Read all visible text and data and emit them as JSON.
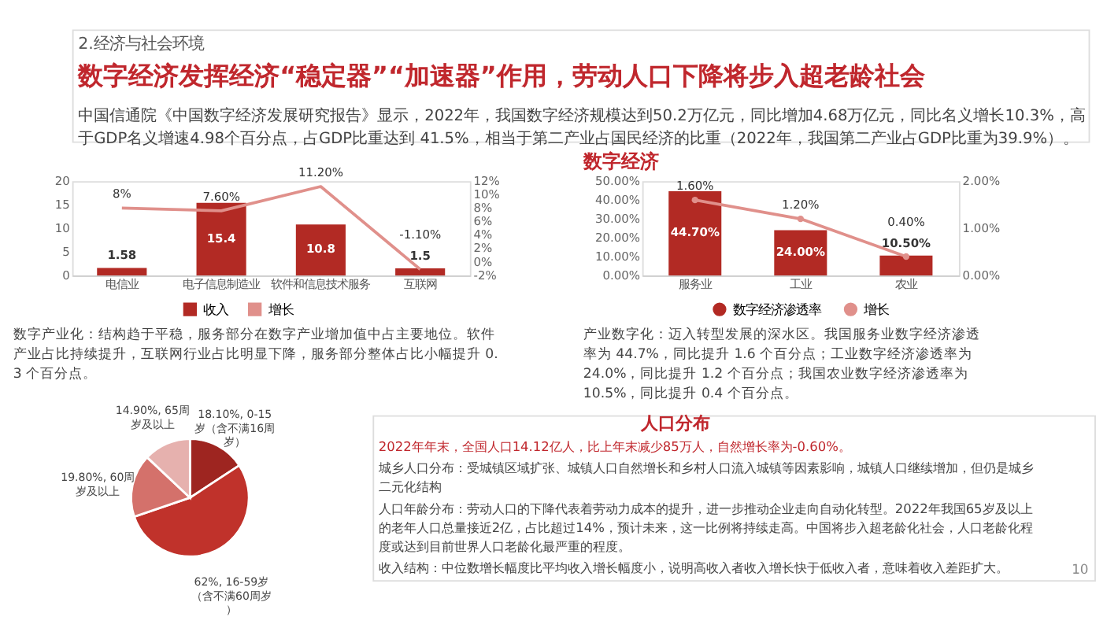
{
  "chart_data": [
    {
      "type": "other",
      "subtitle": "2.经济与社会环境",
      "title": "数字经济发挥经济“稳定器”“加速器”作用，劳动人口下降将步入超老龄社会",
      "annotations": [
        "中国信通院《中国数字经济发展研究报告》显示，2022年，我国数字经济规模达到50.2万亿元，同比增加4.68万亿元，同比名义增长10.3%，高于GDP名义增速4.98个百分点，占GDP比重达到 41.5%，相当于第二产业占国民经济的比重（2022年，我国第二产业占GDP比重为39.9%）。"
      ]
    },
    {
      "type": "bar",
      "categories": [
        "电信业",
        "电子信息制造业",
        "软件和信息技术服务",
        "互联网"
      ],
      "series": [
        {
          "name": "收入",
          "color": "#b22a24",
          "values": [
            1.58,
            15.4,
            10.8,
            1.5
          ],
          "value_labels": [
            "1.58",
            "15.4",
            "10.8",
            "1.5"
          ]
        },
        {
          "name": "增长",
          "type": "line",
          "axis": "y2",
          "color": "#e0908b",
          "values": [
            8,
            7.6,
            11.2,
            -1.1
          ],
          "value_labels": [
            "8%",
            "7.60%",
            "11.20%",
            "-1.10%"
          ]
        }
      ],
      "ylim": [
        0,
        20
      ],
      "yticks": [
        0,
        5,
        10,
        15,
        20
      ],
      "y2lim": [
        -2,
        12
      ],
      "y2ticks": [
        {
          "value": -2,
          "label": "-2%"
        },
        {
          "value": 0,
          "label": "0%"
        },
        {
          "value": 2,
          "label": "2%"
        },
        {
          "value": 4,
          "label": "4%"
        },
        {
          "value": 6,
          "label": "6%"
        },
        {
          "value": 8,
          "label": "8%"
        },
        {
          "value": 10,
          "label": "10%"
        },
        {
          "value": 12,
          "label": "12%"
        }
      ],
      "legend": "bottom",
      "marker": "none",
      "annotations": [
        "数字产业化：结构趋于平稳，服务部分在数字产业增加值中占主要地位。软件产业占比持续提升，互联网行业占比明显下降，服务部分整体占比小幅提升 0.3 个百分点。"
      ]
    },
    {
      "type": "bar",
      "title": "数字经济",
      "categories": [
        "服务业",
        "工业",
        "农业"
      ],
      "series": [
        {
          "name": "数字经济渗透率",
          "color": "#b22a24",
          "values": [
            44.7,
            24.0,
            10.5
          ],
          "value_labels": [
            "44.70%",
            "24.00%",
            "10.50%"
          ]
        },
        {
          "name": "增长",
          "type": "line",
          "axis": "y2",
          "color": "#e0908b",
          "values": [
            1.6,
            1.2,
            0.4
          ],
          "value_labels": [
            "1.60%",
            "1.20%",
            "0.40%"
          ]
        }
      ],
      "ylim": [
        0,
        50
      ],
      "yticks": [
        {
          "value": 0,
          "label": "0.00%"
        },
        {
          "value": 10,
          "label": "10.00%"
        },
        {
          "value": 20,
          "label": "20.00%"
        },
        {
          "value": 30,
          "label": "30.00%"
        },
        {
          "value": 40,
          "label": "40.00%"
        },
        {
          "value": 50,
          "label": "50.00%"
        }
      ],
      "y2lim": [
        0,
        2
      ],
      "y2ticks": [
        {
          "value": 0,
          "label": "0.00%"
        },
        {
          "value": 1,
          "label": "1.00%"
        },
        {
          "value": 2,
          "label": "2.00%"
        }
      ],
      "legend": "bottom",
      "marker": "circle",
      "annotations": [
        "产业数字化：迈入转型发展的深水区。我国服务业数字经济渗透率为 44.7%，同比提升 1.6 个百分点；工业数字经济渗透率为 24.0%，同比提升 1.2 个百分点；我国农业数字经济渗透率为 10.5%，同比提升 0.4 个百分点。"
      ]
    },
    {
      "type": "pie",
      "categories": [
        "0-15岁（含不满16周岁）",
        "16-59岁（含不满60周岁）",
        "60周岁及以上",
        "65周岁及以上"
      ],
      "values": [
        18.1,
        62,
        19.8,
        14.9
      ],
      "value_labels": [
        "18.10%",
        "62%",
        "19.80%",
        "14.90%"
      ],
      "colors": [
        "#9e2520",
        "#c0322b",
        "#d4716b",
        "#e6b1ae"
      ]
    },
    {
      "type": "other",
      "title": "人口分布",
      "annotations": [
        "2022年年末，全国人口14.12亿人，比上年末减少85万人，自然增长率为-0.60%。",
        "城乡人口分布：受城镇区域扩张、城镇人口自然增长和乡村人口流入城镇等因素影响，城镇人口继续增加，但仍是城乡二元化结构",
        "人口年龄分布：劳动人口的下降代表着劳动力成本的提升，进一步推动企业走向自动化转型。2022年我国65岁及以上的老年人口总量接近2亿，占比超过14%，预计未来，这一比例将持续走高。中国将步入超老龄化社会，人口老龄化程度或达到目前世界人口老龄化最严重的程度。",
        "收入结构：中位数增长幅度比平均收入增长幅度小，说明高收入者收入增长快于低收入者，意味着收入差距扩大。",
        "10"
      ]
    }
  ]
}
